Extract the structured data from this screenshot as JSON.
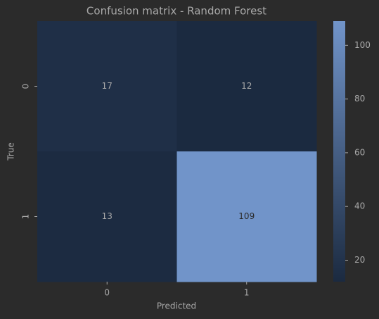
{
  "chart_data": {
    "type": "heatmap",
    "title": "Confusion matrix - Random Forest",
    "x_label": "Predicted",
    "y_label": "True",
    "x_categories": [
      "0",
      "1"
    ],
    "y_categories": [
      "0",
      "1"
    ],
    "values": [
      [
        17,
        12
      ],
      [
        13,
        109
      ]
    ],
    "colormap": [
      "#1b2a40",
      "#7194c9"
    ],
    "zlim": [
      12,
      109
    ],
    "colorbar_ticks": [
      20,
      40,
      60,
      80,
      100
    ]
  }
}
